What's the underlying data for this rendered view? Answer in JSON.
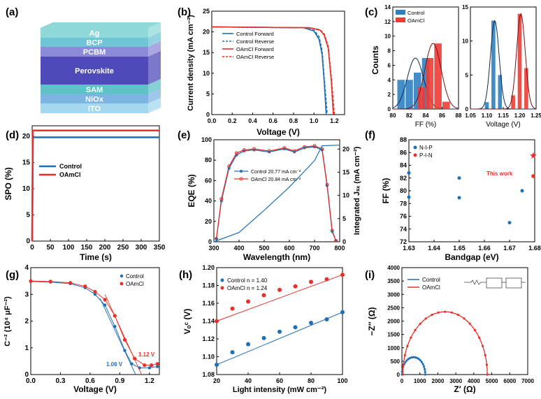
{
  "colors": {
    "control": "#1f6fb5",
    "oamcl": "#e8302a",
    "control_bar": "#2f7fc0",
    "oamcl_bar": "#ee3b34",
    "perov": "#4f4ab9"
  },
  "panels": {
    "a": {
      "label": "(a)",
      "layers": [
        "Ag",
        "BCP",
        "PCBM",
        "Perovskite",
        "SAM",
        "NiOx",
        "ITO"
      ]
    },
    "b": {
      "label": "(b)",
      "xlabel": "Voltage (V)",
      "ylabel": "Current density (mA cm⁻²)",
      "legend": [
        "Control  Forward",
        "Control  Reverse",
        "OAmCl  Forward",
        "OAmCl  Reverse"
      ]
    },
    "c": {
      "label": "(c)",
      "ylabel": "Counts",
      "xlabel_left": "FF (%)",
      "xlabel_right": "Voltage (V)",
      "legend": [
        "Control",
        "OAmCl"
      ]
    },
    "d": {
      "label": "(d)",
      "xlabel": "Time (s)",
      "ylabel": "SPO (%)",
      "legend": [
        "Control",
        "OAmCl"
      ]
    },
    "e": {
      "label": "(e)",
      "xlabel": "Wavelength (nm)",
      "ylabel": "EQE (%)",
      "ylabel2": "Integrated Jₛₓ",
      "legend": [
        "Control  20.77 mA cm⁻²",
        "OAmCl  20.84 mA cm⁻²"
      ]
    },
    "f": {
      "label": "(f)",
      "xlabel": "Bandgap (eV)",
      "ylabel": "FF (%)",
      "legend": [
        "N-I-P",
        "P-I-N"
      ],
      "annotation": "This work"
    },
    "g": {
      "label": "(g)",
      "xlabel": "Voltage (V)",
      "ylabel": "C⁻² (10⁴ μF⁻²)",
      "legend": [
        "Control",
        "OAmCl"
      ],
      "ann1": "1.06 V",
      "ann2": "1.12 V"
    },
    "h": {
      "label": "(h)",
      "xlabel": "Light intensity (mW cm⁻²)",
      "ylabel": "Vₒᶜ (V)",
      "legend": [
        "Control   n = 1.40",
        "OAmCl    n = 1.24"
      ]
    },
    "i": {
      "label": "(i)",
      "xlabel": "Z′ (Ω)",
      "ylabel": "−Z″ (Ω)",
      "legend": [
        "Control",
        "OAmCl"
      ]
    }
  },
  "chart_data": [
    {
      "panel": "b",
      "type": "line",
      "xlim": [
        0,
        1.3
      ],
      "ylim": [
        0,
        25
      ],
      "xticks": [
        "0.0",
        "0.2",
        "0.4",
        "0.6",
        "0.8",
        "1.0",
        "1.2"
      ],
      "yticks": [
        "0",
        "5",
        "10",
        "15",
        "20",
        "25"
      ],
      "series": [
        {
          "name": "Control Forward",
          "x": [
            0,
            0.9,
            1.0,
            1.05,
            1.08,
            1.1,
            1.12
          ],
          "y": [
            21.2,
            21.0,
            20.2,
            18.2,
            14.5,
            8,
            0
          ]
        },
        {
          "name": "Control Reverse",
          "x": [
            0,
            0.9,
            1.0,
            1.05,
            1.08,
            1.1,
            1.13
          ],
          "y": [
            21.2,
            21.0,
            20.4,
            18.8,
            15.5,
            9,
            0
          ]
        },
        {
          "name": "OAmCl Forward",
          "x": [
            0,
            0.96,
            1.06,
            1.1,
            1.14,
            1.17,
            1.19
          ],
          "y": [
            21.2,
            21.0,
            20.4,
            19.2,
            16,
            8,
            0
          ]
        },
        {
          "name": "OAmCl Reverse",
          "x": [
            0,
            0.96,
            1.06,
            1.1,
            1.14,
            1.17,
            1.2
          ],
          "y": [
            21.2,
            21.0,
            20.5,
            19.5,
            16.5,
            9,
            0
          ]
        }
      ]
    },
    {
      "panel": "c-left",
      "type": "bar",
      "xlim": [
        80,
        88
      ],
      "ylim": [
        0,
        14
      ],
      "xticks": [
        "80",
        "82",
        "84",
        "86",
        "88"
      ],
      "yticks": [
        "0",
        "2",
        "4",
        "6",
        "8",
        "10",
        "12",
        "14"
      ],
      "series": [
        {
          "name": "Control",
          "x": [
            81,
            82,
            83,
            84
          ],
          "values": [
            4,
            4,
            5,
            7
          ]
        },
        {
          "name": "OAmCl",
          "x": [
            83.5,
            84.5,
            85.5,
            86.5
          ],
          "values": [
            3,
            7,
            9,
            1
          ]
        }
      ]
    },
    {
      "panel": "c-right",
      "type": "bar",
      "xlim": [
        1.05,
        1.25
      ],
      "ylim": [
        0,
        15
      ],
      "xticks": [
        "1.05",
        "1.10",
        "1.15",
        "1.20",
        "1.25"
      ],
      "yticks": [
        "0",
        "5",
        "10",
        "15"
      ],
      "series": [
        {
          "name": "Control",
          "x": [
            1.1,
            1.12,
            1.14
          ],
          "values": [
            1,
            13,
            5
          ]
        },
        {
          "name": "OAmCl",
          "x": [
            1.18,
            1.2,
            1.22
          ],
          "values": [
            2,
            14,
            6
          ]
        }
      ]
    },
    {
      "panel": "d",
      "type": "line",
      "xlim": [
        0,
        350
      ],
      "ylim": [
        0,
        22
      ],
      "xticks": [
        "0",
        "50",
        "100",
        "150",
        "200",
        "250",
        "300",
        "350"
      ],
      "yticks": [
        "0",
        "5",
        "10",
        "15",
        "20"
      ],
      "series": [
        {
          "name": "Control",
          "value": 19.8
        },
        {
          "name": "OAmCl",
          "value": 21.1
        }
      ]
    },
    {
      "panel": "e",
      "type": "line",
      "xlim": [
        300,
        800
      ],
      "ylim": [
        0,
        100
      ],
      "y2lim": [
        0,
        22
      ],
      "xticks": [
        "300",
        "400",
        "500",
        "600",
        "700",
        "800"
      ],
      "yticks": [
        "0",
        "20",
        "40",
        "60",
        "80",
        "100"
      ],
      "y2ticks": [
        "0",
        "5",
        "10",
        "15",
        "20"
      ],
      "series": [
        {
          "name": "Control EQE",
          "x": [
            310,
            330,
            360,
            390,
            420,
            460,
            520,
            580,
            620,
            660,
            700,
            730,
            750,
            770,
            785
          ],
          "y": [
            3,
            40,
            72,
            85,
            89,
            90,
            88,
            91,
            88,
            92,
            93,
            90,
            55,
            10,
            1
          ]
        },
        {
          "name": "OAmCl EQE",
          "x": [
            310,
            330,
            360,
            390,
            420,
            460,
            520,
            580,
            620,
            660,
            700,
            730,
            750,
            770,
            785
          ],
          "y": [
            3,
            42,
            74,
            87,
            90,
            91,
            89,
            92,
            89,
            93,
            94,
            91,
            56,
            11,
            1
          ]
        },
        {
          "name": "Integrated Jsc",
          "x": [
            300,
            400,
            500,
            600,
            700,
            730,
            800
          ],
          "y": [
            0,
            2,
            6.8,
            11.8,
            17.5,
            20.7,
            20.84
          ]
        }
      ]
    },
    {
      "panel": "f",
      "type": "scatter",
      "xlim": [
        1.63,
        1.68
      ],
      "ylim": [
        72,
        88
      ],
      "xticks": [
        "1.63",
        "1.64",
        "1.65",
        "1.66",
        "1.67",
        "1.68"
      ],
      "yticks": [
        "72",
        "74",
        "76",
        "78",
        "80",
        "82",
        "84",
        "86",
        "88"
      ],
      "series": [
        {
          "name": "N-I-P",
          "x": [
            1.63,
            1.63,
            1.65,
            1.65,
            1.67,
            1.675
          ],
          "y": [
            82.8,
            79,
            82,
            78.9,
            75,
            80
          ]
        },
        {
          "name": "P-I-N",
          "x": [
            1.68
          ],
          "y": [
            82.3
          ]
        },
        {
          "name": "This work",
          "x": [
            1.68
          ],
          "y": [
            85.5
          ]
        }
      ]
    },
    {
      "panel": "g",
      "type": "scatter",
      "xlim": [
        0,
        1.3
      ],
      "ylim": [
        0,
        4
      ],
      "xticks": [
        "0.0",
        "0.3",
        "0.6",
        "0.9",
        "1.2"
      ],
      "yticks": [
        "0",
        "1",
        "2",
        "3",
        "4"
      ],
      "series": [
        {
          "name": "Control",
          "x": [
            0,
            0.2,
            0.4,
            0.55,
            0.65,
            0.75,
            0.85,
            0.95,
            1.02,
            1.1,
            1.2,
            1.28
          ],
          "y": [
            3.48,
            3.46,
            3.4,
            3.25,
            3.0,
            2.6,
            1.8,
            0.9,
            0.4,
            0.25,
            0.25,
            0.3
          ]
        },
        {
          "name": "OAmCl",
          "x": [
            0,
            0.2,
            0.4,
            0.55,
            0.65,
            0.75,
            0.85,
            0.95,
            1.05,
            1.15,
            1.22,
            1.28
          ],
          "y": [
            3.5,
            3.48,
            3.43,
            3.3,
            3.1,
            2.8,
            2.2,
            1.3,
            0.6,
            0.35,
            0.35,
            0.4
          ]
        }
      ]
    },
    {
      "panel": "h",
      "type": "scatter",
      "xlim": [
        20,
        100
      ],
      "ylim": [
        1.08,
        1.2
      ],
      "xticks": [
        "20",
        "40",
        "60",
        "80",
        "100"
      ],
      "yticks": [
        "1.08",
        "1.10",
        "1.12",
        "1.14",
        "1.16",
        "1.18",
        "1.20"
      ],
      "series": [
        {
          "name": "Control",
          "x": [
            20,
            30,
            40,
            50,
            60,
            70,
            80,
            90,
            100
          ],
          "y": [
            1.091,
            1.105,
            1.114,
            1.121,
            1.128,
            1.133,
            1.138,
            1.142,
            1.15
          ]
        },
        {
          "name": "OAmCl",
          "x": [
            20,
            30,
            40,
            50,
            60,
            70,
            80,
            90,
            100
          ],
          "y": [
            1.14,
            1.154,
            1.162,
            1.169,
            1.175,
            1.179,
            1.184,
            1.187,
            1.192
          ]
        }
      ]
    },
    {
      "panel": "i",
      "type": "scatter",
      "xlim": [
        0,
        7000
      ],
      "ylim": [
        0,
        4000
      ],
      "xticks": [
        "0",
        "1000",
        "2000",
        "3000",
        "4000",
        "5000",
        "6000",
        "7000"
      ],
      "yticks": [
        "0",
        "500",
        "1000",
        "1500",
        "2000",
        "2500",
        "3000",
        "3500",
        "4000"
      ],
      "series": [
        {
          "name": "Control",
          "center": 650,
          "radius": 650
        },
        {
          "name": "OAmCl",
          "center": 2400,
          "radius": 2350
        }
      ]
    }
  ]
}
